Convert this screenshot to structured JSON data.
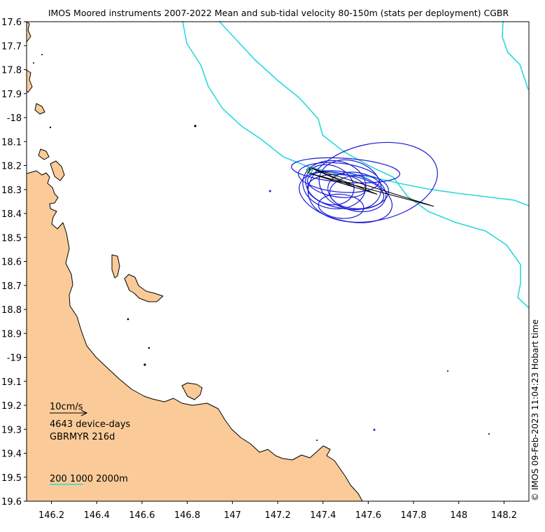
{
  "title": "IMOS Moored instruments 2007-2022 Mean and sub-tidal velocity 80-150m (stats per deployment) CGBR",
  "credit": "© IMOS 09-Feb-2023 11:04:23 Hobart time",
  "axes": {
    "lon_range": [
      146.09,
      148.31
    ],
    "lat_range": [
      19.6,
      17.6
    ],
    "lon_ticks": [
      "146.2",
      "146.4",
      "146.6",
      "146.8",
      "147",
      "147.2",
      "147.4",
      "147.6",
      "147.8",
      "148",
      "148.2"
    ],
    "lat_ticks": [
      "17.6",
      "17.7",
      "17.8",
      "17.9",
      "-18",
      "18.1",
      "18.2",
      "18.3",
      "18.4",
      "18.5",
      "18.6",
      "18.7",
      "18.8",
      "18.9",
      "-19",
      "19.1",
      "19.2",
      "19.3",
      "19.4",
      "19.5",
      "19.6"
    ]
  },
  "legend": {
    "scale_label": "10cm/s",
    "device_days": "4643 device-days",
    "mooring": "GBRMYR 216d",
    "isobaths": "200 1000 2000m"
  },
  "colors": {
    "land": "#FACB98",
    "coast": "#000000",
    "isobath": "#29D9DB",
    "ellipse": "#1A1AD9",
    "mean_vector": "#000000",
    "mooring_marker": "#00A050"
  },
  "chart_data": {
    "type": "map",
    "mooring": {
      "name": "GBRMYR",
      "lon": 147.34,
      "lat": 18.22,
      "days": 216
    },
    "mean_velocity_vectors": [
      {
        "dx_lon": 0.55,
        "dy_lat": -0.15
      },
      {
        "dx_lon": 0.3,
        "dy_lat": -0.1
      },
      {
        "dx_lon": 0.2,
        "dy_lat": -0.07
      }
    ],
    "variance_ellipses": [
      {
        "center": [
          147.62,
          18.27
        ],
        "rx": 0.29,
        "ry": 0.16,
        "angle": -12
      },
      {
        "center": [
          147.5,
          18.22
        ],
        "rx": 0.24,
        "ry": 0.05,
        "angle": 4
      },
      {
        "center": [
          147.47,
          18.25
        ],
        "rx": 0.18,
        "ry": 0.06,
        "angle": 6
      },
      {
        "center": [
          147.45,
          18.28
        ],
        "rx": 0.14,
        "ry": 0.1,
        "angle": 8
      },
      {
        "center": [
          147.5,
          18.33
        ],
        "rx": 0.21,
        "ry": 0.1,
        "angle": 14
      },
      {
        "center": [
          147.56,
          18.31
        ],
        "rx": 0.13,
        "ry": 0.07,
        "angle": -2
      },
      {
        "center": [
          147.48,
          18.37
        ],
        "rx": 0.1,
        "ry": 0.05,
        "angle": 5
      },
      {
        "center": [
          147.46,
          18.28
        ],
        "rx": 0.13,
        "ry": 0.05,
        "angle": 10
      },
      {
        "center": [
          147.5,
          18.31
        ],
        "rx": 0.17,
        "ry": 0.07,
        "angle": 8
      },
      {
        "center": [
          147.52,
          18.28
        ],
        "rx": 0.14,
        "ry": 0.1,
        "angle": 18
      },
      {
        "center": [
          147.43,
          18.28
        ],
        "rx": 0.11,
        "ry": 0.08,
        "angle": 22
      },
      {
        "center": [
          147.55,
          18.31
        ],
        "rx": 0.13,
        "ry": 0.08,
        "angle": 12
      }
    ],
    "isobath_depths_m": [
      200,
      1000,
      2000
    ]
  }
}
